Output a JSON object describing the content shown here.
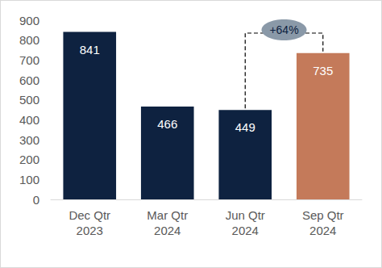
{
  "chart_data": {
    "type": "bar",
    "categories": [
      "Dec Qtr\n2023",
      "Mar Qtr\n2024",
      "Jun Qtr\n2024",
      "Sep Qtr\n2024"
    ],
    "values": [
      841,
      466,
      449,
      735
    ],
    "colors": [
      "#0e2240",
      "#0e2240",
      "#0e2240",
      "#c47a5a"
    ],
    "ylim": [
      0,
      900
    ],
    "yticks": [
      0,
      100,
      200,
      300,
      400,
      500,
      600,
      700,
      800,
      900
    ],
    "grid": false,
    "data_labels": true,
    "annotations": [
      {
        "text": "+64%",
        "from": "Jun Qtr\n2024",
        "to": "Sep Qtr\n2024"
      }
    ]
  }
}
